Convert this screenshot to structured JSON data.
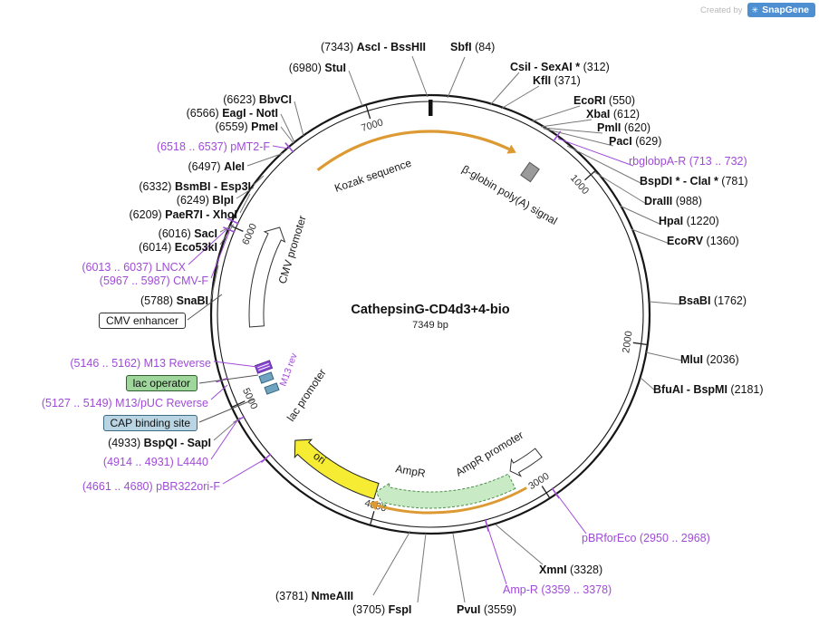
{
  "watermark": {
    "created_by": "Created by",
    "brand": "SnapGene"
  },
  "plasmid": {
    "name": "CathepsinG-CD4d3+4-bio",
    "length_bp": 7349,
    "length_label": "7349 bp"
  },
  "tick_labels": [
    "1000",
    "2000",
    "3000",
    "4000",
    "5000",
    "6000",
    "7000"
  ],
  "colors": {
    "primer_purple": "#A04BD8",
    "feature_orange": "#DD9A33",
    "ori_yellow": "#F5EC33",
    "ampr_green": "#C8EBC5",
    "snapgene_blue": "#4D8FD1",
    "lac_operator_green": "#9ED69B",
    "cap_binding_blue": "#B9D4E3",
    "polyA_gray": "#9A9A9A"
  },
  "site_labels": [
    {
      "prefix": "(7343) ",
      "name": "AscI - BssHII",
      "suffix": "",
      "kind": "enzyme"
    },
    {
      "prefix": "",
      "name": "SbfI",
      "suffix": " (84)",
      "kind": "enzyme"
    },
    {
      "prefix": "",
      "name": "CsiI - SexAI *",
      "suffix": " (312)",
      "kind": "enzyme"
    },
    {
      "prefix": "",
      "name": "KflI",
      "suffix": " (371)",
      "kind": "enzyme"
    },
    {
      "prefix": "",
      "name": "EcoRI",
      "suffix": " (550)",
      "kind": "enzyme"
    },
    {
      "prefix": "",
      "name": "XbaI",
      "suffix": " (612)",
      "kind": "enzyme"
    },
    {
      "prefix": "",
      "name": "PmlI",
      "suffix": " (620)",
      "kind": "enzyme"
    },
    {
      "prefix": "",
      "name": "PacI",
      "suffix": " (629)",
      "kind": "enzyme"
    },
    {
      "prefix": "",
      "name": "rbglobpA-R",
      "suffix": " (713 .. 732)",
      "kind": "primer"
    },
    {
      "prefix": "",
      "name": "BspDI * - ClaI *",
      "suffix": " (781)",
      "kind": "enzyme"
    },
    {
      "prefix": "",
      "name": "DraIII",
      "suffix": " (988)",
      "kind": "enzyme"
    },
    {
      "prefix": "",
      "name": "HpaI",
      "suffix": " (1220)",
      "kind": "enzyme"
    },
    {
      "prefix": "",
      "name": "EcoRV",
      "suffix": " (1360)",
      "kind": "enzyme"
    },
    {
      "prefix": "",
      "name": "BsaBI",
      "suffix": " (1762)",
      "kind": "enzyme"
    },
    {
      "prefix": "",
      "name": "MluI",
      "suffix": " (2036)",
      "kind": "enzyme"
    },
    {
      "prefix": "",
      "name": "BfuAI - BspMI",
      "suffix": " (2181)",
      "kind": "enzyme"
    },
    {
      "prefix": "",
      "name": "pBRforEco",
      "suffix": " (2950 .. 2968)",
      "kind": "primer"
    },
    {
      "prefix": "",
      "name": "XmnI",
      "suffix": " (3328)",
      "kind": "enzyme"
    },
    {
      "prefix": "",
      "name": "Amp-R",
      "suffix": " (3359 .. 3378)",
      "kind": "primer"
    },
    {
      "prefix": "",
      "name": "PvuI",
      "suffix": " (3559)",
      "kind": "enzyme"
    },
    {
      "prefix": "(3705) ",
      "name": "FspI",
      "suffix": "",
      "kind": "enzyme"
    },
    {
      "prefix": "(3781) ",
      "name": "NmeAIII",
      "suffix": "",
      "kind": "enzyme"
    },
    {
      "prefix": "(4661 .. 4680) ",
      "name": "pBR322ori-F",
      "suffix": "",
      "kind": "primer"
    },
    {
      "prefix": "(4914 .. 4931) ",
      "name": "L4440",
      "suffix": "",
      "kind": "primer"
    },
    {
      "prefix": "(4933) ",
      "name": "BspQI - SapI",
      "suffix": "",
      "kind": "enzyme"
    },
    {
      "prefix": "(5127 .. 5149) ",
      "name": "M13/pUC Reverse",
      "suffix": "",
      "kind": "primer"
    },
    {
      "prefix": "(5146 .. 5162) ",
      "name": "M13 Reverse",
      "suffix": "",
      "kind": "primer"
    },
    {
      "prefix": "(5788) ",
      "name": "SnaBI",
      "suffix": "",
      "kind": "enzyme"
    },
    {
      "prefix": "(5967 .. 5987) ",
      "name": "CMV-F",
      "suffix": "",
      "kind": "primer"
    },
    {
      "prefix": "(6013 .. 6037) ",
      "name": "LNCX",
      "suffix": "",
      "kind": "primer"
    },
    {
      "prefix": "(6014) ",
      "name": "Eco53kI",
      "suffix": "",
      "kind": "enzyme"
    },
    {
      "prefix": "(6016) ",
      "name": "SacI",
      "suffix": "",
      "kind": "enzyme"
    },
    {
      "prefix": "(6209) ",
      "name": "PaeR7I - XhoI",
      "suffix": "",
      "kind": "enzyme"
    },
    {
      "prefix": "(6249) ",
      "name": "BlpI",
      "suffix": "",
      "kind": "enzyme"
    },
    {
      "prefix": "(6332) ",
      "name": "BsmBI - Esp3I",
      "suffix": "",
      "kind": "enzyme"
    },
    {
      "prefix": "(6497) ",
      "name": "AleI",
      "suffix": "",
      "kind": "enzyme"
    },
    {
      "prefix": "(6518 .. 6537) ",
      "name": "pMT2-F",
      "suffix": "",
      "kind": "primer"
    },
    {
      "prefix": "(6559) ",
      "name": "PmeI",
      "suffix": "",
      "kind": "enzyme"
    },
    {
      "prefix": "(6566) ",
      "name": "EagI - NotI",
      "suffix": "",
      "kind": "enzyme"
    },
    {
      "prefix": "(6623) ",
      "name": "BbvCI",
      "suffix": "",
      "kind": "enzyme"
    },
    {
      "prefix": "(6980) ",
      "name": "StuI",
      "suffix": "",
      "kind": "enzyme"
    }
  ],
  "feature_labels": {
    "kozak_sequence": "Kozak sequence",
    "beta_globin_polyA": "β-globin poly(A) signal",
    "cmv_promoter": "CMV promoter",
    "cmv_enhancer": "CMV enhancer",
    "m13_rev": "M13 rev",
    "lac_operator": "lac operator",
    "lac_promoter": "lac promoter",
    "cap_binding_site": "CAP binding site",
    "ori": "ori",
    "ampr": "AmpR",
    "ampr_promoter": "AmpR promoter"
  }
}
